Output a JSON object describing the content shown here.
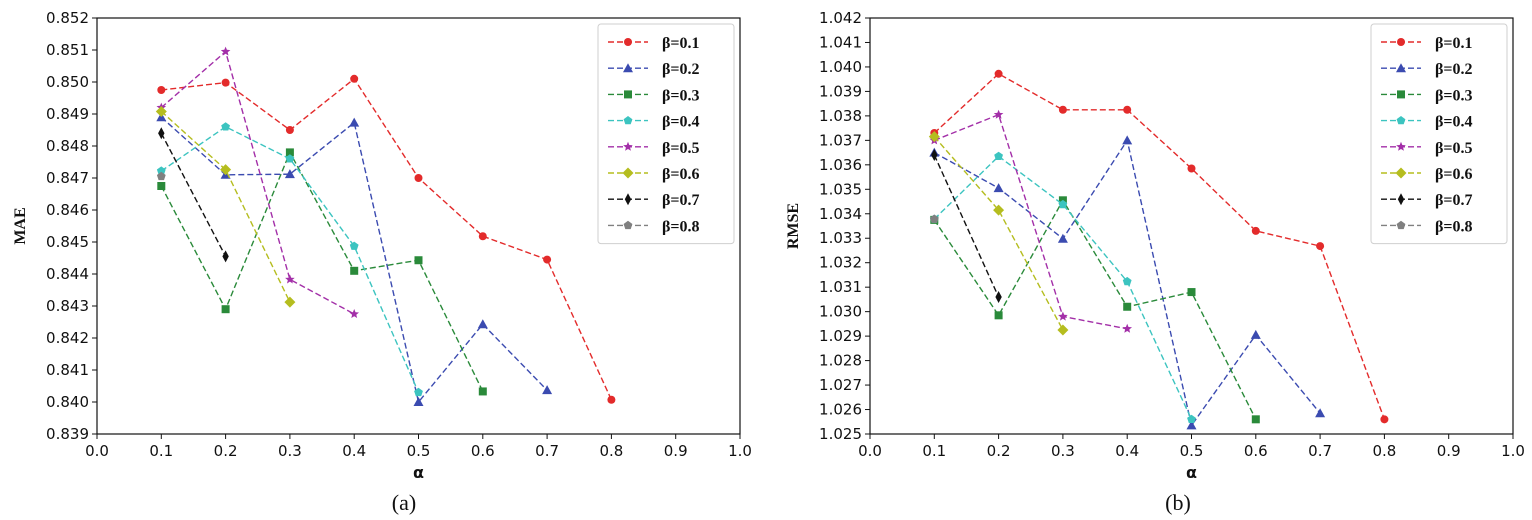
{
  "panels": [
    {
      "caption": "(a)"
    },
    {
      "caption": "(b)"
    }
  ],
  "chart_data": [
    {
      "type": "line",
      "title": "",
      "xlabel": "α",
      "ylabel": "MAE",
      "xlim": [
        0.0,
        1.0
      ],
      "ylim": [
        0.839,
        0.852
      ],
      "xticks": [
        "0.0",
        "0.1",
        "0.2",
        "0.3",
        "0.4",
        "0.5",
        "0.6",
        "0.7",
        "0.8",
        "0.9",
        "1.0"
      ],
      "yticks": [
        "0.839",
        "0.840",
        "0.841",
        "0.842",
        "0.843",
        "0.844",
        "0.845",
        "0.846",
        "0.847",
        "0.848",
        "0.849",
        "0.850",
        "0.851",
        "0.852"
      ],
      "grid": false,
      "legend": "top-right",
      "series": [
        {
          "name": "β=0.1",
          "color": "#e32b2b",
          "marker": "circle",
          "x": [
            0.1,
            0.2,
            0.3,
            0.4,
            0.5,
            0.6,
            0.7,
            0.8
          ],
          "y": [
            0.84975,
            0.84998,
            0.8485,
            0.8501,
            0.847,
            0.84518,
            0.84445,
            0.84007
          ]
        },
        {
          "name": "β=0.2",
          "color": "#3b4bb0",
          "marker": "triangle",
          "x": [
            0.1,
            0.2,
            0.3,
            0.4,
            0.5,
            0.6,
            0.7
          ],
          "y": [
            0.8489,
            0.8471,
            0.84712,
            0.84873,
            0.84,
            0.84243,
            0.84037
          ]
        },
        {
          "name": "β=0.3",
          "color": "#2a8a3a",
          "marker": "square",
          "x": [
            0.1,
            0.2,
            0.3,
            0.4,
            0.5,
            0.6
          ],
          "y": [
            0.84675,
            0.8429,
            0.8478,
            0.8441,
            0.84443,
            0.84033
          ]
        },
        {
          "name": "β=0.4",
          "color": "#3cc4c0",
          "marker": "pentagon",
          "x": [
            0.1,
            0.2,
            0.3,
            0.4,
            0.5
          ],
          "y": [
            0.84722,
            0.8486,
            0.8476,
            0.84487,
            0.8403
          ]
        },
        {
          "name": "β=0.5",
          "color": "#a32fa8",
          "marker": "star",
          "x": [
            0.1,
            0.2,
            0.3,
            0.4
          ],
          "y": [
            0.8492,
            0.85095,
            0.84383,
            0.84275
          ]
        },
        {
          "name": "β=0.6",
          "color": "#b5bd1f",
          "marker": "diamond",
          "x": [
            0.1,
            0.2,
            0.3
          ],
          "y": [
            0.84908,
            0.84726,
            0.84312
          ]
        },
        {
          "name": "β=0.7",
          "color": "#111111",
          "marker": "thin_diamond",
          "x": [
            0.1,
            0.2
          ],
          "y": [
            0.8484,
            0.84455
          ]
        },
        {
          "name": "β=0.8",
          "color": "#808080",
          "marker": "pentagon",
          "x": [
            0.1
          ],
          "y": [
            0.84705
          ]
        }
      ]
    },
    {
      "type": "line",
      "title": "",
      "xlabel": "α",
      "ylabel": "RMSE",
      "xlim": [
        0.0,
        1.0
      ],
      "ylim": [
        1.025,
        1.042
      ],
      "xticks": [
        "0.0",
        "0.1",
        "0.2",
        "0.3",
        "0.4",
        "0.5",
        "0.6",
        "0.7",
        "0.8",
        "0.9",
        "1.0"
      ],
      "yticks": [
        "1.025",
        "1.026",
        "1.027",
        "1.028",
        "1.029",
        "1.030",
        "1.031",
        "1.032",
        "1.033",
        "1.034",
        "1.035",
        "1.036",
        "1.037",
        "1.038",
        "1.039",
        "1.040",
        "1.041",
        "1.042"
      ],
      "grid": false,
      "legend": "top-right",
      "series": [
        {
          "name": "β=0.1",
          "color": "#e32b2b",
          "marker": "circle",
          "x": [
            0.1,
            0.2,
            0.3,
            0.4,
            0.5,
            0.6,
            0.7,
            0.8
          ],
          "y": [
            1.0373,
            1.03972,
            1.03825,
            1.03825,
            1.03585,
            1.0333,
            1.03268,
            1.0256
          ]
        },
        {
          "name": "β=0.2",
          "color": "#3b4bb0",
          "marker": "triangle",
          "x": [
            0.1,
            0.2,
            0.3,
            0.4,
            0.5,
            0.6,
            0.7
          ],
          "y": [
            1.0365,
            1.03505,
            1.03298,
            1.037,
            1.02535,
            1.02905,
            1.02585
          ]
        },
        {
          "name": "β=0.3",
          "color": "#2a8a3a",
          "marker": "square",
          "x": [
            0.1,
            0.2,
            0.3,
            0.4,
            0.5,
            0.6
          ],
          "y": [
            1.03375,
            1.02985,
            1.03455,
            1.0302,
            1.0308,
            1.0256
          ]
        },
        {
          "name": "β=0.4",
          "color": "#3cc4c0",
          "marker": "pentagon",
          "x": [
            0.1,
            0.2,
            0.3,
            0.4,
            0.5
          ],
          "y": [
            1.03378,
            1.03635,
            1.03438,
            1.03123,
            1.0256
          ]
        },
        {
          "name": "β=0.5",
          "color": "#a32fa8",
          "marker": "star",
          "x": [
            0.1,
            0.2,
            0.3,
            0.4
          ],
          "y": [
            1.037,
            1.03805,
            1.0298,
            1.0293
          ]
        },
        {
          "name": "β=0.6",
          "color": "#b5bd1f",
          "marker": "diamond",
          "x": [
            0.1,
            0.2,
            0.3
          ],
          "y": [
            1.03715,
            1.03415,
            1.02925
          ]
        },
        {
          "name": "β=0.7",
          "color": "#111111",
          "marker": "thin_diamond",
          "x": [
            0.1,
            0.2
          ],
          "y": [
            1.0364,
            1.0306
          ]
        },
        {
          "name": "β=0.8",
          "color": "#808080",
          "marker": "pentagon",
          "x": [
            0.1
          ],
          "y": [
            1.03378
          ]
        }
      ]
    }
  ]
}
